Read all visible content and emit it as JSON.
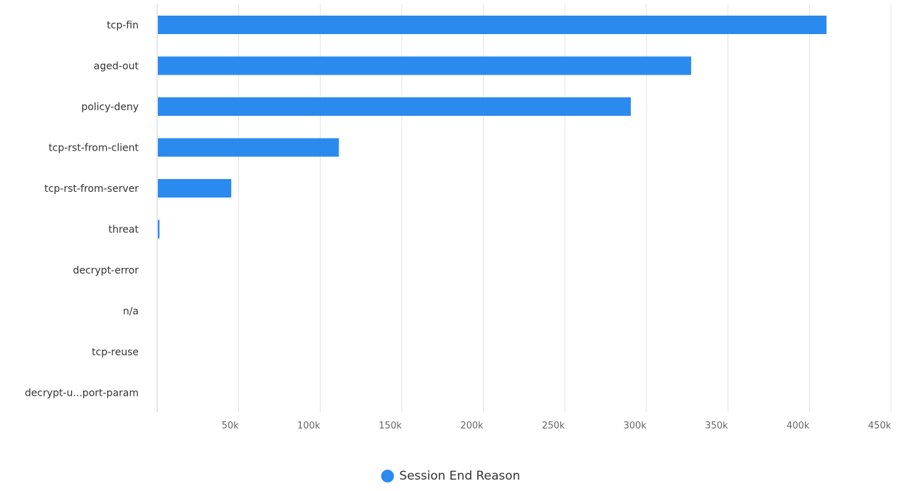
{
  "chart_data": {
    "type": "bar",
    "orientation": "horizontal",
    "categories": [
      "tcp-fin",
      "aged-out",
      "policy-deny",
      "tcp-rst-from-client",
      "tcp-rst-from-server",
      "threat",
      "decrypt-error",
      "n/a",
      "tcp-reuse",
      "decrypt-u...port-param"
    ],
    "series": [
      {
        "name": "Session End Reason",
        "values": [
          410000,
          327000,
          290000,
          111000,
          45000,
          1000,
          0,
          0,
          0,
          0
        ]
      }
    ],
    "xlim": [
      0,
      450000
    ],
    "xticks": [
      50000,
      100000,
      150000,
      200000,
      250000,
      300000,
      350000,
      400000,
      450000
    ],
    "xtick_labels": [
      "50k",
      "100k",
      "150k",
      "200k",
      "250k",
      "300k",
      "350k",
      "400k",
      "450k"
    ],
    "grid": true,
    "legend_position": "bottom-center",
    "color": "#2b8aee"
  }
}
